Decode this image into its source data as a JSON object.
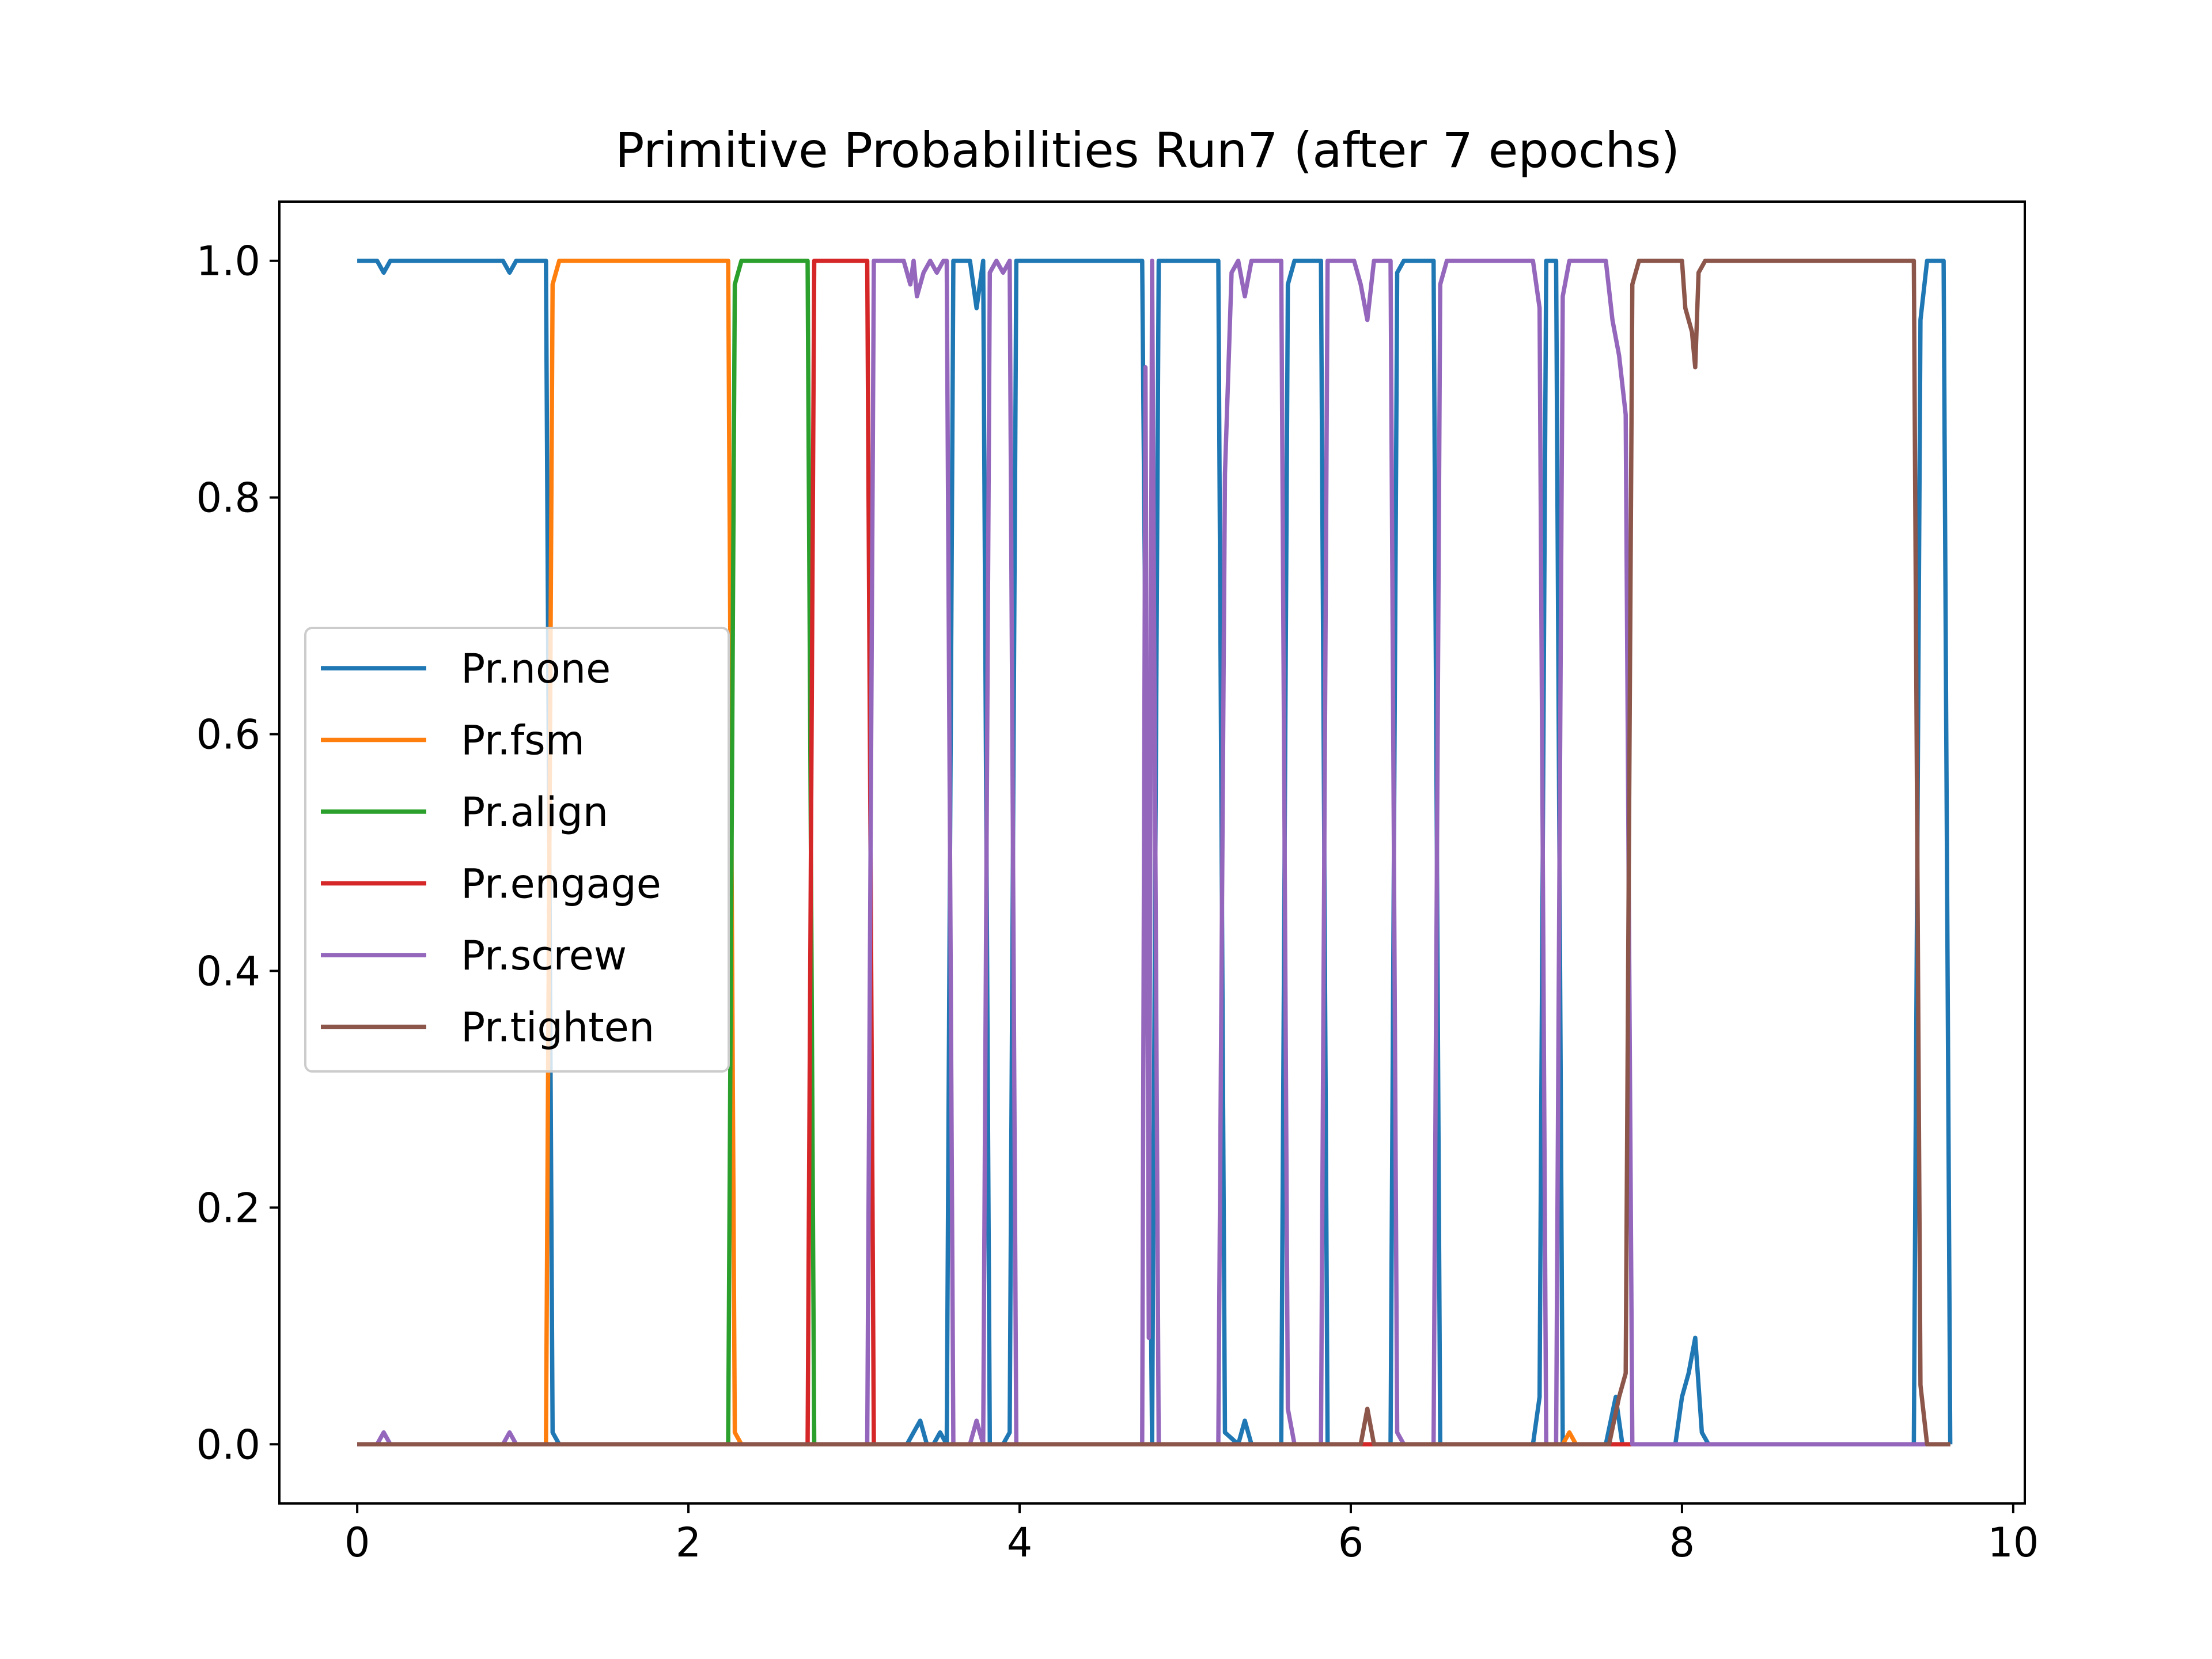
{
  "chart_data": {
    "type": "line",
    "title": "Primitive Probabilities Run7 (after 7 epochs)",
    "xlabel": "",
    "ylabel": "",
    "xlim": [
      -0.47,
      10.07
    ],
    "ylim": [
      -0.05,
      1.05
    ],
    "xticks": [
      0,
      2,
      4,
      6,
      8,
      10
    ],
    "xtick_labels": [
      "0",
      "2",
      "4",
      "6",
      "8",
      "10"
    ],
    "yticks": [
      0.0,
      0.2,
      0.4,
      0.6,
      0.8,
      1.0
    ],
    "ytick_labels": [
      "0.0",
      "0.2",
      "0.4",
      "0.6",
      "0.8",
      "1.0"
    ],
    "grid": false,
    "legend_position": "center-left",
    "series": [
      {
        "name": "Pr.none",
        "color": "#1f77b4",
        "points": [
          [
            0,
            1
          ],
          [
            0.12,
            1
          ],
          [
            0.16,
            0.99
          ],
          [
            0.2,
            1
          ],
          [
            0.88,
            1
          ],
          [
            0.92,
            0.99
          ],
          [
            0.96,
            1
          ],
          [
            1.14,
            1
          ],
          [
            1.18,
            0.01
          ],
          [
            1.22,
            0
          ],
          [
            3.32,
            0
          ],
          [
            3.36,
            0.01
          ],
          [
            3.4,
            0.02
          ],
          [
            3.44,
            0
          ],
          [
            3.48,
            0
          ],
          [
            3.52,
            0.01
          ],
          [
            3.56,
            0
          ],
          [
            3.6,
            1
          ],
          [
            3.7,
            1
          ],
          [
            3.74,
            0.96
          ],
          [
            3.78,
            1
          ],
          [
            3.82,
            0
          ],
          [
            3.9,
            0
          ],
          [
            3.94,
            0.01
          ],
          [
            3.98,
            1
          ],
          [
            4.74,
            1
          ],
          [
            4.8,
            0
          ],
          [
            4.84,
            1
          ],
          [
            5.2,
            1
          ],
          [
            5.24,
            0.01
          ],
          [
            5.32,
            0
          ],
          [
            5.36,
            0.02
          ],
          [
            5.4,
            0
          ],
          [
            5.58,
            0
          ],
          [
            5.62,
            0.98
          ],
          [
            5.66,
            1
          ],
          [
            5.82,
            1
          ],
          [
            5.86,
            0
          ],
          [
            6.24,
            0
          ],
          [
            6.28,
            0.99
          ],
          [
            6.32,
            1
          ],
          [
            6.5,
            1
          ],
          [
            6.54,
            0
          ],
          [
            7.1,
            0
          ],
          [
            7.14,
            0.04
          ],
          [
            7.18,
            1
          ],
          [
            7.24,
            1
          ],
          [
            7.28,
            0
          ],
          [
            7.54,
            0
          ],
          [
            7.6,
            0.04
          ],
          [
            7.64,
            0
          ],
          [
            7.96,
            0
          ],
          [
            8,
            0.04
          ],
          [
            8.04,
            0.06
          ],
          [
            8.08,
            0.09
          ],
          [
            8.12,
            0.01
          ],
          [
            8.16,
            0
          ],
          [
            9.4,
            0
          ],
          [
            9.44,
            0.95
          ],
          [
            9.48,
            1
          ],
          [
            9.58,
            1
          ],
          [
            9.62,
            0
          ]
        ]
      },
      {
        "name": "Pr.fsm",
        "color": "#ff7f0e",
        "points": [
          [
            0,
            0
          ],
          [
            1.14,
            0
          ],
          [
            1.18,
            0.98
          ],
          [
            1.22,
            1
          ],
          [
            2.24,
            1
          ],
          [
            2.28,
            0.01
          ],
          [
            2.32,
            0
          ],
          [
            7.28,
            0
          ],
          [
            7.32,
            0.01
          ],
          [
            7.36,
            0
          ],
          [
            9.62,
            0
          ]
        ]
      },
      {
        "name": "Pr.align",
        "color": "#2ca02c",
        "points": [
          [
            0,
            0
          ],
          [
            2.24,
            0
          ],
          [
            2.28,
            0.98
          ],
          [
            2.32,
            1
          ],
          [
            2.72,
            1
          ],
          [
            2.76,
            0
          ],
          [
            9.62,
            0
          ]
        ]
      },
      {
        "name": "Pr.engage",
        "color": "#d62728",
        "points": [
          [
            0,
            0
          ],
          [
            2.72,
            0
          ],
          [
            2.76,
            1
          ],
          [
            3.08,
            1
          ],
          [
            3.12,
            0
          ],
          [
            9.62,
            0
          ]
        ]
      },
      {
        "name": "Pr.screw",
        "color": "#9467bd",
        "points": [
          [
            0,
            0
          ],
          [
            0.12,
            0
          ],
          [
            0.16,
            0.01
          ],
          [
            0.2,
            0
          ],
          [
            0.88,
            0
          ],
          [
            0.92,
            0.01
          ],
          [
            0.96,
            0
          ],
          [
            3.08,
            0
          ],
          [
            3.12,
            1
          ],
          [
            3.3,
            1
          ],
          [
            3.34,
            0.98
          ],
          [
            3.36,
            1
          ],
          [
            3.38,
            0.97
          ],
          [
            3.42,
            0.99
          ],
          [
            3.46,
            1
          ],
          [
            3.5,
            0.99
          ],
          [
            3.54,
            1
          ],
          [
            3.56,
            1
          ],
          [
            3.6,
            0
          ],
          [
            3.7,
            0
          ],
          [
            3.74,
            0.02
          ],
          [
            3.78,
            0
          ],
          [
            3.82,
            0.99
          ],
          [
            3.86,
            1
          ],
          [
            3.9,
            0.99
          ],
          [
            3.94,
            1
          ],
          [
            3.98,
            0
          ],
          [
            4.74,
            0
          ],
          [
            4.76,
            0.91
          ],
          [
            4.78,
            0.09
          ],
          [
            4.8,
            1
          ],
          [
            4.84,
            0
          ],
          [
            5.2,
            0
          ],
          [
            5.24,
            0.82
          ],
          [
            5.28,
            0.99
          ],
          [
            5.32,
            1
          ],
          [
            5.36,
            0.97
          ],
          [
            5.4,
            1
          ],
          [
            5.58,
            1
          ],
          [
            5.62,
            0.03
          ],
          [
            5.66,
            0
          ],
          [
            5.82,
            0
          ],
          [
            5.86,
            1
          ],
          [
            6.02,
            1
          ],
          [
            6.06,
            0.98
          ],
          [
            6.1,
            0.95
          ],
          [
            6.14,
            1
          ],
          [
            6.24,
            1
          ],
          [
            6.28,
            0.01
          ],
          [
            6.32,
            0
          ],
          [
            6.5,
            0
          ],
          [
            6.54,
            0.98
          ],
          [
            6.58,
            1
          ],
          [
            7.1,
            1
          ],
          [
            7.14,
            0.96
          ],
          [
            7.18,
            0
          ],
          [
            7.24,
            0
          ],
          [
            7.28,
            0.97
          ],
          [
            7.32,
            1
          ],
          [
            7.54,
            1
          ],
          [
            7.58,
            0.95
          ],
          [
            7.62,
            0.92
          ],
          [
            7.66,
            0.87
          ],
          [
            7.7,
            0
          ],
          [
            9.62,
            0
          ]
        ]
      },
      {
        "name": "Pr.tighten",
        "color": "#8c564b",
        "points": [
          [
            0,
            0
          ],
          [
            6.06,
            0
          ],
          [
            6.1,
            0.03
          ],
          [
            6.14,
            0
          ],
          [
            7.56,
            0
          ],
          [
            7.62,
            0.04
          ],
          [
            7.66,
            0.06
          ],
          [
            7.7,
            0.98
          ],
          [
            7.74,
            1
          ],
          [
            8,
            1
          ],
          [
            8.02,
            0.96
          ],
          [
            8.06,
            0.94
          ],
          [
            8.08,
            0.91
          ],
          [
            8.1,
            0.99
          ],
          [
            8.14,
            1
          ],
          [
            9.4,
            1
          ],
          [
            9.44,
            0.05
          ],
          [
            9.48,
            0
          ],
          [
            9.62,
            0
          ]
        ]
      }
    ]
  }
}
